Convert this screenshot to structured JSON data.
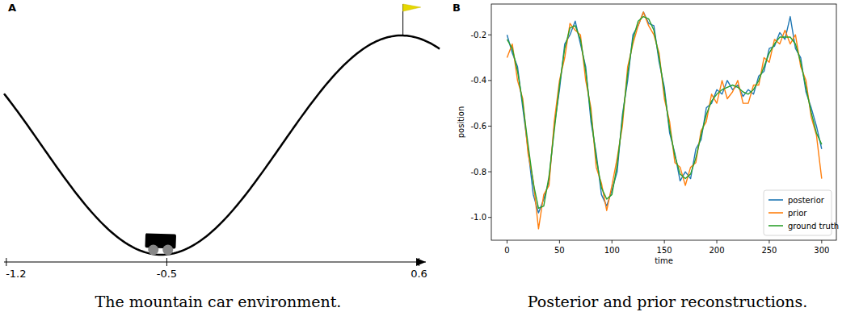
{
  "chart_data": [
    {
      "type": "diagram",
      "panel": "A",
      "caption": "The mountain car environment.",
      "xlim": [
        -1.21,
        0.63
      ],
      "xticks": [
        -1.2,
        -0.5,
        0.6
      ]
    },
    {
      "type": "line",
      "panel": "B",
      "caption": "Posterior and prior reconstructions.",
      "x_label": "time",
      "y_label": "position",
      "xlim": [
        -15,
        314
      ],
      "ylim": [
        -1.1,
        -0.065
      ],
      "xticks": [
        0,
        50,
        100,
        150,
        200,
        250,
        300
      ],
      "yticks": [
        {
          "value": -1,
          "label": "-1.0"
        },
        -0.8,
        -0.6,
        -0.4,
        -0.2
      ],
      "legend": "lower right",
      "x": [
        0,
        5,
        10,
        15,
        20,
        25,
        30,
        35,
        40,
        45,
        50,
        55,
        60,
        65,
        70,
        75,
        80,
        85,
        90,
        95,
        100,
        105,
        110,
        115,
        120,
        125,
        130,
        135,
        140,
        145,
        150,
        155,
        160,
        165,
        170,
        175,
        180,
        185,
        190,
        195,
        200,
        205,
        210,
        215,
        220,
        225,
        230,
        235,
        240,
        245,
        250,
        255,
        260,
        265,
        270,
        275,
        280,
        285,
        290,
        295,
        300
      ],
      "series": [
        {
          "name": "posterior",
          "color": "#1f77b4",
          "values": [
            -0.2,
            -0.28,
            -0.34,
            -0.52,
            -0.7,
            -0.9,
            -0.98,
            -0.92,
            -0.84,
            -0.6,
            -0.44,
            -0.24,
            -0.2,
            -0.14,
            -0.24,
            -0.34,
            -0.58,
            -0.72,
            -0.9,
            -0.95,
            -0.88,
            -0.8,
            -0.55,
            -0.4,
            -0.2,
            -0.16,
            -0.1,
            -0.15,
            -0.16,
            -0.32,
            -0.43,
            -0.63,
            -0.72,
            -0.84,
            -0.8,
            -0.83,
            -0.7,
            -0.66,
            -0.52,
            -0.5,
            -0.44,
            -0.46,
            -0.4,
            -0.44,
            -0.42,
            -0.47,
            -0.44,
            -0.46,
            -0.38,
            -0.36,
            -0.26,
            -0.25,
            -0.19,
            -0.22,
            -0.12,
            -0.26,
            -0.3,
            -0.45,
            -0.52,
            -0.6,
            -0.7
          ]
        },
        {
          "name": "prior",
          "color": "#ff7f0e",
          "values": [
            -0.3,
            -0.24,
            -0.4,
            -0.48,
            -0.72,
            -0.84,
            -1.05,
            -0.9,
            -0.86,
            -0.58,
            -0.4,
            -0.3,
            -0.15,
            -0.18,
            -0.2,
            -0.4,
            -0.52,
            -0.78,
            -0.85,
            -0.97,
            -0.86,
            -0.74,
            -0.6,
            -0.34,
            -0.24,
            -0.16,
            -0.1,
            -0.16,
            -0.2,
            -0.28,
            -0.48,
            -0.58,
            -0.76,
            -0.78,
            -0.86,
            -0.78,
            -0.76,
            -0.62,
            -0.58,
            -0.46,
            -0.5,
            -0.4,
            -0.48,
            -0.45,
            -0.4,
            -0.5,
            -0.5,
            -0.42,
            -0.42,
            -0.3,
            -0.32,
            -0.22,
            -0.24,
            -0.18,
            -0.24,
            -0.2,
            -0.34,
            -0.4,
            -0.56,
            -0.64,
            -0.83
          ]
        },
        {
          "name": "ground truth",
          "color": "#2ca02c",
          "values": [
            -0.22,
            -0.26,
            -0.36,
            -0.5,
            -0.68,
            -0.85,
            -0.96,
            -0.95,
            -0.82,
            -0.62,
            -0.42,
            -0.26,
            -0.17,
            -0.16,
            -0.22,
            -0.36,
            -0.55,
            -0.74,
            -0.87,
            -0.92,
            -0.9,
            -0.77,
            -0.57,
            -0.37,
            -0.22,
            -0.14,
            -0.12,
            -0.13,
            -0.18,
            -0.3,
            -0.45,
            -0.61,
            -0.73,
            -0.81,
            -0.83,
            -0.81,
            -0.74,
            -0.64,
            -0.55,
            -0.49,
            -0.46,
            -0.44,
            -0.43,
            -0.42,
            -0.43,
            -0.45,
            -0.46,
            -0.44,
            -0.4,
            -0.34,
            -0.28,
            -0.24,
            -0.21,
            -0.21,
            -0.21,
            -0.24,
            -0.32,
            -0.43,
            -0.54,
            -0.63,
            -0.68
          ]
        }
      ]
    }
  ]
}
